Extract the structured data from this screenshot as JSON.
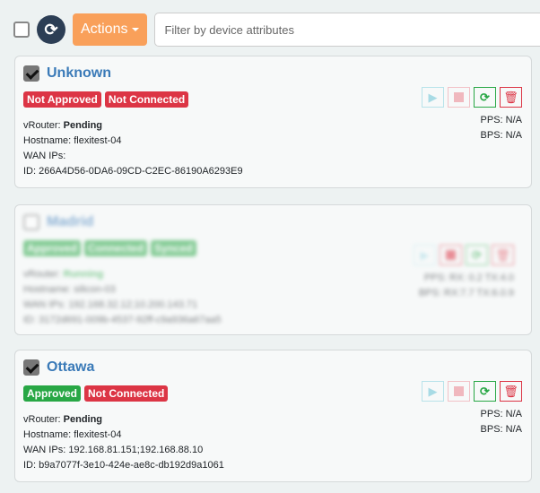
{
  "toolbar": {
    "actions_label": "Actions",
    "filter_placeholder": "Filter by device attributes"
  },
  "devices": [
    {
      "name": "Unknown",
      "checked": true,
      "badges": [
        "Not Approved",
        "Not Connected"
      ],
      "vrouter_label": "vRouter:",
      "vrouter": "Pending",
      "hostname": "Hostname: flexitest-04",
      "wan": "WAN IPs:",
      "id": "ID: 266A4D56-0DA6-09CD-C2EC-86190A6293E9",
      "pps": "PPS: N/A",
      "bps": "BPS: N/A"
    },
    {
      "name": "Madrid",
      "checked": false,
      "badges": [
        "Approved",
        "Connected",
        "Synced"
      ],
      "vrouter_label": "vRouter:",
      "vrouter": "Running",
      "hostname": "Hostname: silicon-03",
      "wan": "WAN IPs: 192.168.32.12;10.200.143.71",
      "id": "ID: 3172d691-009b-4537-92ff-c9a936a67aa5",
      "pps": "PPS: RX: 0.2 TX:4.0",
      "bps": "BPS: RX:7.7 TX:6.0.9"
    },
    {
      "name": "Ottawa",
      "checked": true,
      "badges": [
        "Approved",
        "Not Connected"
      ],
      "vrouter_label": "vRouter:",
      "vrouter": "Pending",
      "hostname": "Hostname: flexitest-04",
      "wan": "WAN IPs: 192.168.81.151;192.168.88.10",
      "id": "ID: b9a7077f-3e10-424e-ae8c-db192d9a1061",
      "pps": "PPS: N/A",
      "bps": "BPS: N/A"
    }
  ],
  "colors": {
    "danger": "#dc3545",
    "success": "#28a745",
    "accent": "#f9a05a",
    "link": "#3a7ab8"
  }
}
